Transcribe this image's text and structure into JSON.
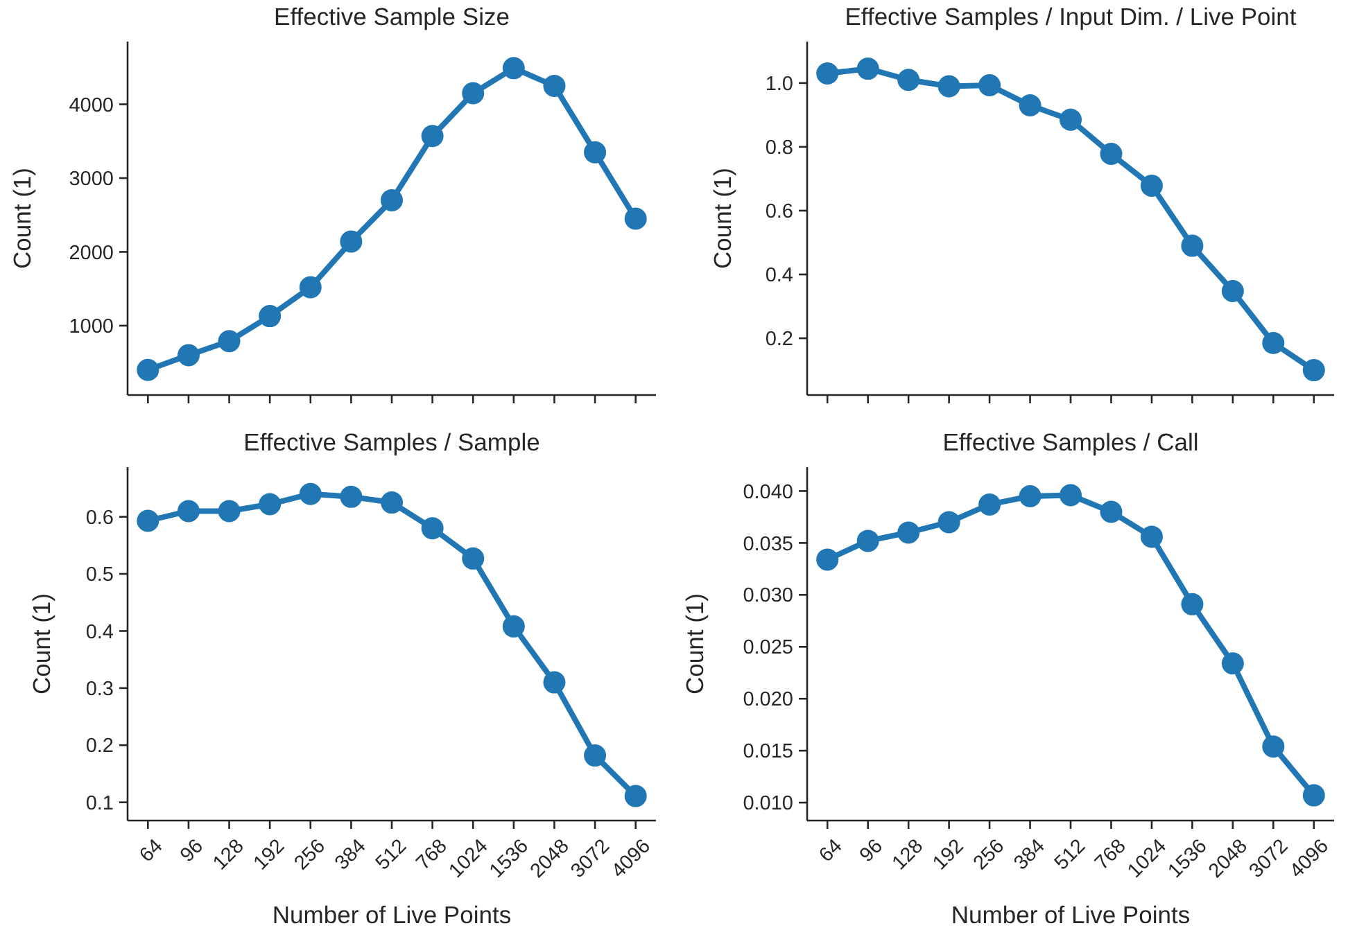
{
  "chart_data": [
    {
      "type": "line",
      "title": "Effective Sample Size",
      "ylabel": "Count (1)",
      "categories": [
        "64",
        "96",
        "128",
        "192",
        "256",
        "384",
        "512",
        "768",
        "1024",
        "1536",
        "2048",
        "3072",
        "4096"
      ],
      "series": [
        {
          "color": "#2077b4",
          "values": [
            400,
            600,
            790,
            1130,
            1520,
            2140,
            2700,
            3570,
            4150,
            4490,
            4250,
            3350,
            2450
          ]
        }
      ],
      "ylim": [
        60,
        4850
      ],
      "yticks": [
        1000,
        2000,
        3000,
        4000
      ],
      "marker": "circle",
      "line_style": "solid",
      "grid": false,
      "tick_labels": "y"
    },
    {
      "type": "line",
      "title": "Effective Samples / Input Dim. / Live Point",
      "ylabel": "Count (1)",
      "categories": [
        "64",
        "96",
        "128",
        "192",
        "256",
        "384",
        "512",
        "768",
        "1024",
        "1536",
        "2048",
        "3072",
        "4096"
      ],
      "series": [
        {
          "color": "#2077b4",
          "values": [
            1.03,
            1.045,
            1.01,
            0.99,
            0.993,
            0.93,
            0.885,
            0.778,
            0.678,
            0.49,
            0.348,
            0.185,
            0.1
          ]
        }
      ],
      "ylim": [
        0.022,
        1.13
      ],
      "yticks": [
        {
          "value": 0.2,
          "label": "0.2"
        },
        {
          "value": 0.4,
          "label": "0.4"
        },
        {
          "value": 0.6,
          "label": "0.6"
        },
        {
          "value": 0.8,
          "label": "0.8"
        },
        {
          "value": 1.0,
          "label": "1.0"
        }
      ],
      "marker": "circle",
      "line_style": "solid",
      "grid": false,
      "tick_labels": "y"
    },
    {
      "type": "line",
      "title": "Effective Samples / Sample",
      "xlabel": "Number of Live Points",
      "ylabel": "Count (1)",
      "categories": [
        "64",
        "96",
        "128",
        "192",
        "256",
        "384",
        "512",
        "768",
        "1024",
        "1536",
        "2048",
        "3072",
        "4096"
      ],
      "series": [
        {
          "color": "#2077b4",
          "values": [
            0.593,
            0.61,
            0.61,
            0.622,
            0.64,
            0.635,
            0.625,
            0.58,
            0.527,
            0.408,
            0.31,
            0.182,
            0.111
          ]
        }
      ],
      "ylim": [
        0.068,
        0.687
      ],
      "yticks": [
        0.1,
        0.2,
        0.3,
        0.4,
        0.5,
        0.6
      ],
      "marker": "circle",
      "line_style": "solid",
      "grid": false
    },
    {
      "type": "line",
      "title": "Effective Samples / Call",
      "xlabel": "Number of Live Points",
      "ylabel": "Count (1)",
      "categories": [
        "64",
        "96",
        "128",
        "192",
        "256",
        "384",
        "512",
        "768",
        "1024",
        "1536",
        "2048",
        "3072",
        "4096"
      ],
      "series": [
        {
          "color": "#2077b4",
          "values": [
            0.0334,
            0.0352,
            0.036,
            0.037,
            0.0387,
            0.0395,
            0.0396,
            0.038,
            0.0356,
            0.0291,
            0.0234,
            0.0154,
            0.0107
          ]
        }
      ],
      "ylim": [
        0.00827,
        0.0423
      ],
      "yticks": [
        {
          "value": 0.01,
          "label": "0.010"
        },
        {
          "value": 0.015,
          "label": "0.015"
        },
        {
          "value": 0.02,
          "label": "0.020"
        },
        {
          "value": 0.025,
          "label": "0.025"
        },
        {
          "value": 0.03,
          "label": "0.030"
        },
        {
          "value": 0.035,
          "label": "0.035"
        },
        {
          "value": 0.04,
          "label": "0.040"
        }
      ],
      "marker": "circle",
      "line_style": "solid",
      "grid": false
    }
  ]
}
